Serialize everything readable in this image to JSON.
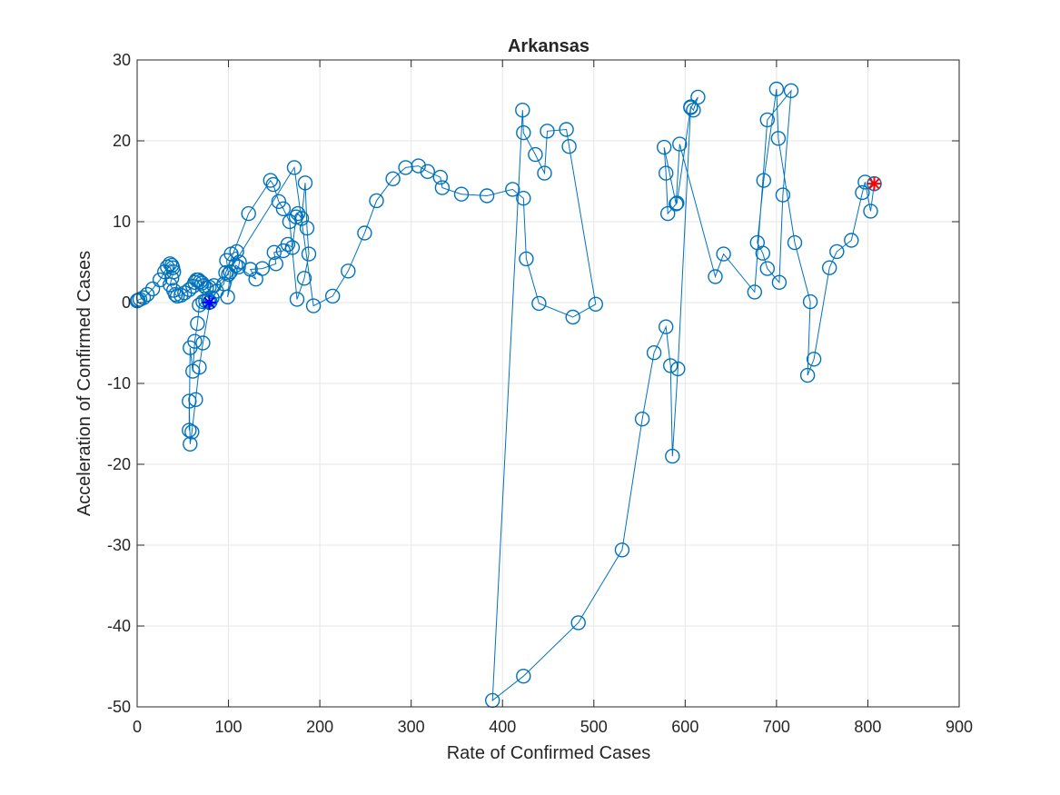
{
  "chart_data": {
    "type": "scatter",
    "title": "Arkansas",
    "xlabel": "Rate of Confirmed Cases",
    "ylabel": "Acceleration of Confirmed Cases",
    "xlim": [
      0,
      900
    ],
    "ylim": [
      -50,
      30
    ],
    "xticks": [
      0,
      100,
      200,
      300,
      400,
      500,
      600,
      700,
      800,
      900
    ],
    "yticks": [
      -50,
      -40,
      -30,
      -20,
      -10,
      0,
      10,
      20,
      30
    ],
    "xtick_labels": [
      "0",
      "100",
      "200",
      "300",
      "400",
      "500",
      "600",
      "700",
      "800",
      "900"
    ],
    "ytick_labels": [
      "-50",
      "-40",
      "-30",
      "-20",
      "-10",
      "0",
      "10",
      "20",
      "30"
    ],
    "grid": true,
    "colors": {
      "series": "#0072BD",
      "start_marker": "#0000FF",
      "end_marker": "#FF0000"
    },
    "series": [
      {
        "marker": "circle",
        "line": "solid",
        "x": [
          0,
          1,
          3,
          7,
          11,
          17,
          25,
          30,
          33,
          36,
          38,
          39,
          40,
          38,
          36,
          40,
          42,
          44,
          48,
          52,
          57,
          61,
          63,
          65,
          67,
          69,
          71,
          73,
          76,
          79,
          84,
          100,
          98,
          103,
          109,
          112,
          111,
          102,
          99,
          108,
          130,
          124,
          137,
          152,
          150,
          160,
          165,
          170,
          174,
          176,
          180,
          184,
          186,
          188,
          183,
          175,
          167,
          160,
          155,
          149,
          146,
          122,
          97,
          95,
          87,
          82,
          78,
          75,
          72,
          68,
          66,
          63,
          61,
          58,
          57,
          57,
          58,
          60,
          64,
          68,
          72,
          80,
          172,
          193,
          214,
          231,
          249,
          262,
          280,
          294,
          308,
          318,
          332,
          334,
          355,
          383,
          411,
          423,
          426,
          440,
          477,
          502,
          473,
          470,
          449,
          446,
          436,
          423,
          422,
          389,
          423,
          483,
          531,
          553,
          566,
          579,
          584,
          586,
          592,
          606,
          614,
          609,
          606,
          591,
          581,
          579,
          577,
          590,
          594,
          633,
          642,
          676,
          690,
          716,
          707,
          703,
          690,
          685,
          679,
          686,
          700,
          702,
          720,
          737,
          734,
          741,
          758,
          766,
          782,
          794,
          797,
          803,
          807
        ],
        "y": [
          0.2,
          0.3,
          0.4,
          0.6,
          1.0,
          1.7,
          2.8,
          3.8,
          4.4,
          4.8,
          4.6,
          4.3,
          3.8,
          3.0,
          2.2,
          1.5,
          1.0,
          0.8,
          0.9,
          1.2,
          1.6,
          2.0,
          2.5,
          2.8,
          2.8,
          2.6,
          2.4,
          2.1,
          1.8,
          1.9,
          2.1,
          3.5,
          5.2,
          6.0,
          6.3,
          5.0,
          4.4,
          3.8,
          0.7,
          4.6,
          2.9,
          4.1,
          4.2,
          4.8,
          6.2,
          6.4,
          7.2,
          6.8,
          10.6,
          11.0,
          10.4,
          14.8,
          9.2,
          6.0,
          3.0,
          0.4,
          10.0,
          11.6,
          12.5,
          14.6,
          15.1,
          11.0,
          3.7,
          2.3,
          1.4,
          0.6,
          0.3,
          0.2,
          0.1,
          -0.3,
          -2.6,
          -4.8,
          -8.5,
          -5.6,
          -15.8,
          -12.2,
          -17.5,
          -16.0,
          -12.0,
          -8.0,
          -5.0,
          0.1,
          16.7,
          -0.4,
          0.8,
          3.9,
          8.6,
          12.6,
          15.3,
          16.7,
          16.9,
          16.2,
          15.5,
          14.2,
          13.4,
          13.2,
          14.0,
          12.9,
          5.4,
          -0.1,
          -1.8,
          -0.2,
          19.3,
          21.4,
          21.2,
          16.0,
          18.3,
          21.0,
          23.8,
          -49.2,
          -46.2,
          -39.6,
          -30.6,
          -14.4,
          -6.2,
          -3.0,
          -7.8,
          -19.0,
          -8.2,
          24.1,
          25.4,
          23.8,
          24.2,
          12.3,
          11.0,
          16.0,
          19.2,
          12.2,
          19.6,
          3.2,
          6.0,
          1.3,
          22.6,
          26.2,
          13.3,
          2.5,
          4.2,
          6.1,
          7.4,
          15.1,
          26.4,
          20.3,
          7.4,
          0.1,
          -9.0,
          -7.0,
          4.3,
          6.3,
          7.7,
          13.6,
          14.9,
          11.3,
          14.7
        ],
        "special_points": [
          {
            "label": "start",
            "x": 79,
            "y": 0,
            "marker": "asterisk",
            "color": "#0000FF"
          },
          {
            "label": "end",
            "x": 807,
            "y": 14.7,
            "marker": "asterisk",
            "color": "#FF0000"
          }
        ]
      }
    ]
  }
}
